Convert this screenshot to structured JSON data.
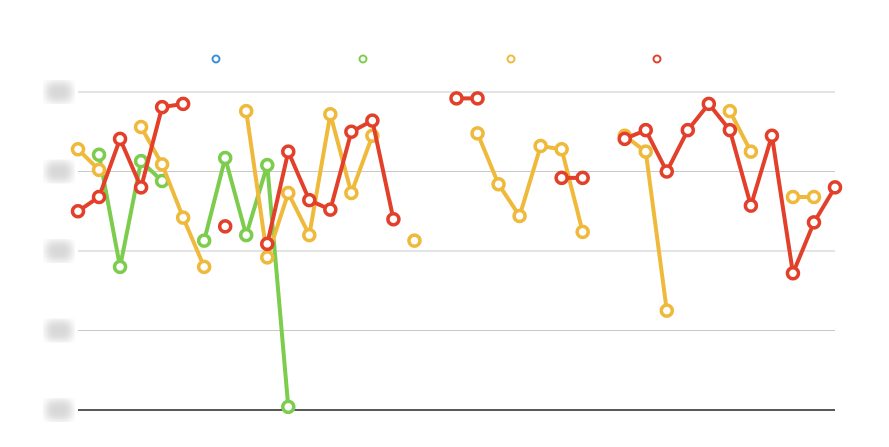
{
  "chart_data": {
    "type": "line",
    "categories": [
      null,
      null,
      null,
      null,
      null,
      null,
      null,
      null,
      null,
      null,
      null,
      null,
      null,
      null,
      null,
      null,
      null,
      null,
      null,
      null,
      null,
      null,
      null,
      null,
      null,
      null,
      null,
      null,
      null,
      null,
      null,
      null,
      null,
      null,
      null,
      null,
      null
    ],
    "ylim": [
      0,
      4
    ],
    "yticks": [
      0,
      1,
      2,
      3,
      4
    ],
    "grid": true,
    "legend": "top",
    "series": [
      {
        "color": "#3a8fd8",
        "values": [
          null,
          null,
          null,
          null,
          null,
          null,
          null,
          null,
          null,
          null,
          null,
          null,
          null,
          null,
          null,
          null,
          null,
          null,
          null,
          null,
          null,
          null,
          null,
          null,
          null,
          null,
          null,
          null,
          null,
          null,
          null,
          null,
          null,
          null,
          null,
          null,
          null
        ]
      },
      {
        "color": "#7ccc4e",
        "values": [
          null,
          3.21,
          1.8,
          3.13,
          2.88,
          null,
          2.13,
          3.17,
          2.2,
          3.08,
          0.04,
          null,
          null,
          null,
          null,
          null,
          null,
          null,
          null,
          null,
          null,
          null,
          null,
          null,
          null,
          null,
          null,
          null,
          null,
          null,
          null,
          null,
          null,
          null,
          null,
          null,
          null
        ]
      },
      {
        "color": "#efb93b",
        "values": [
          3.28,
          3.02,
          null,
          3.56,
          3.09,
          2.42,
          1.8,
          null,
          3.76,
          1.92,
          2.73,
          2.2,
          3.72,
          2.73,
          3.45,
          null,
          2.13,
          null,
          null,
          3.48,
          2.84,
          2.44,
          3.32,
          3.28,
          2.24,
          null,
          3.45,
          3.25,
          1.25,
          null,
          null,
          3.76,
          3.25,
          null,
          2.68,
          2.68,
          null
        ]
      },
      {
        "color": "#e2402a",
        "values": [
          2.5,
          2.68,
          3.41,
          2.8,
          3.81,
          3.85,
          null,
          2.31,
          null,
          2.09,
          3.25,
          2.64,
          2.52,
          3.5,
          3.64,
          2.4,
          null,
          null,
          3.92,
          3.92,
          null,
          null,
          null,
          2.92,
          2.92,
          null,
          3.41,
          3.52,
          3.0,
          3.52,
          3.85,
          3.52,
          2.57,
          3.45,
          1.72,
          2.36,
          2.8
        ]
      }
    ]
  }
}
